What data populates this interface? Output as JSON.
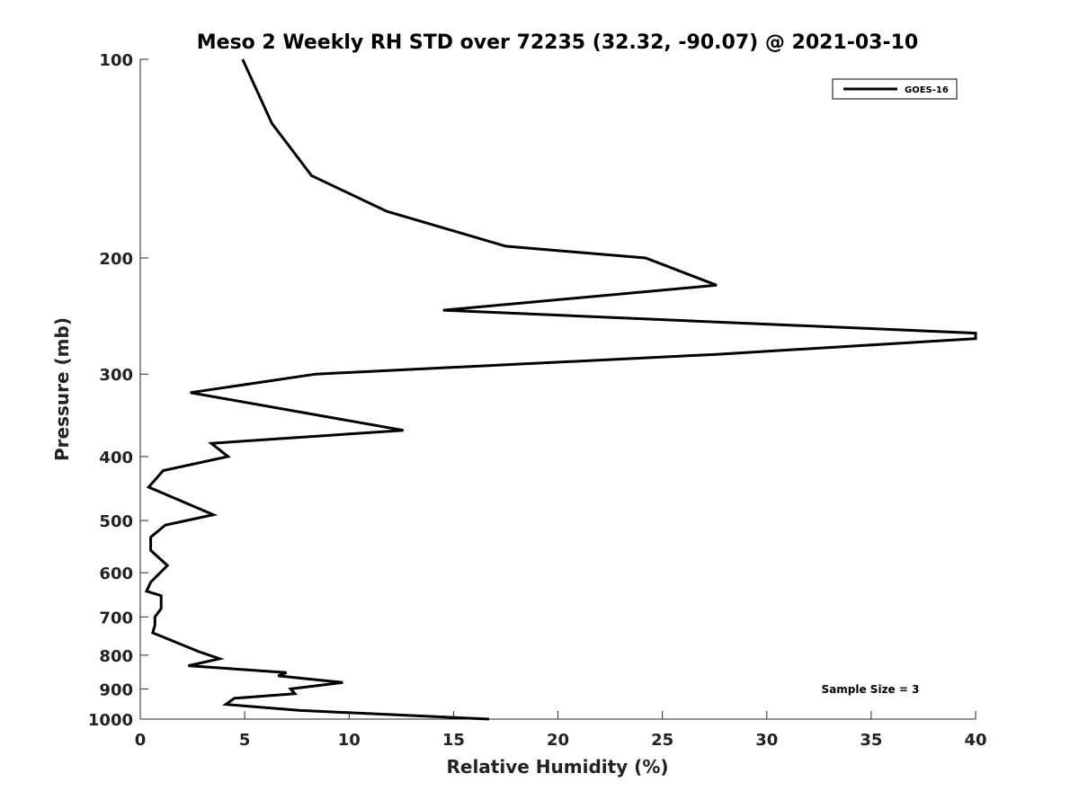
{
  "chart_data": {
    "type": "line",
    "title": "Meso 2 Weekly RH STD over 72235 (32.32, -90.07) @ 2021-03-10",
    "xlabel": "Relative Humidity (%)",
    "ylabel": "Pressure (mb)",
    "xlim": [
      0,
      40
    ],
    "ylim": [
      100,
      1000
    ],
    "yscale": "log",
    "y_reversed": true,
    "grid": false,
    "xticks": [
      0,
      5,
      10,
      15,
      20,
      25,
      30,
      35,
      40
    ],
    "xtick_labels": [
      "0",
      "5",
      "10",
      "15",
      "20",
      "25",
      "30",
      "35",
      "40"
    ],
    "yticks": [
      100,
      200,
      300,
      400,
      500,
      600,
      700,
      800,
      900,
      1000
    ],
    "ytick_labels": [
      "100",
      "200",
      "300",
      "400",
      "500",
      "600",
      "700",
      "800",
      "900",
      "1000"
    ],
    "legend_position": "top-right",
    "series": [
      {
        "name": "GOES-16",
        "color": "#000000",
        "x": [
          4.9,
          6.3,
          8.2,
          11.8,
          17.5,
          24.2,
          27.6,
          14.5,
          40.0,
          40.0,
          27.6,
          8.4,
          2.4,
          12.6,
          3.4,
          4.2,
          1.1,
          0.4,
          3.5,
          1.2,
          0.5,
          0.5,
          1.3,
          0.5,
          0.3,
          1.0,
          1.0,
          0.7,
          0.7,
          0.6,
          2.8,
          3.8,
          2.3,
          7.0,
          6.6,
          9.7,
          7.2,
          7.4,
          4.5,
          4.1,
          7.6,
          16.7
        ],
        "y": [
          100,
          125,
          150,
          170,
          192,
          200,
          220,
          240,
          260,
          265,
          280,
          300,
          320,
          365,
          382,
          400,
          420,
          445,
          490,
          508,
          530,
          555,
          585,
          620,
          640,
          650,
          680,
          700,
          720,
          740,
          790,
          810,
          830,
          850,
          860,
          880,
          900,
          915,
          930,
          950,
          970,
          1000
        ]
      }
    ],
    "annotation": "Sample Size = 3"
  }
}
